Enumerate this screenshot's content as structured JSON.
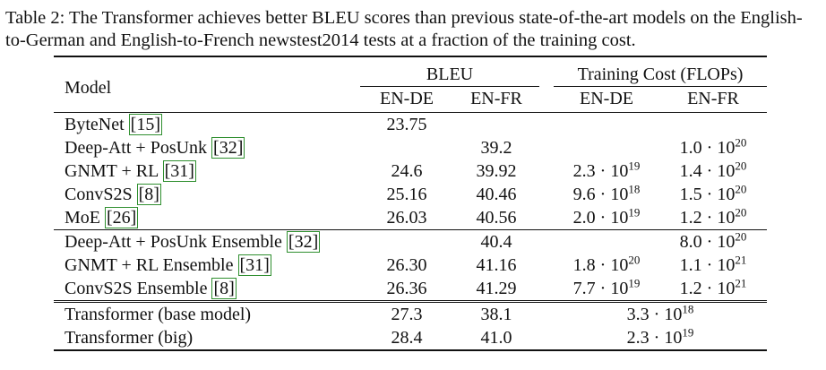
{
  "caption": "Table 2: The Transformer achieves better BLEU scores than previous state-of-the-art models on the English-to-German and English-to-French newstest2014 tests at a fraction of the training cost.",
  "header": {
    "model": "Model",
    "bleu": "BLEU",
    "cost": "Training Cost (FLOPs)",
    "sub_ende": "EN-DE",
    "sub_enfr": "EN-FR",
    "cost_ende": "EN-DE",
    "cost_enfr": "EN-FR"
  },
  "groups": [
    [
      {
        "name": "ByteNet ",
        "ref": "[15]",
        "bleu_ende": "23.75",
        "bleu_enfr": "",
        "cost_ende": "",
        "cost_enfr": ""
      },
      {
        "name": "Deep-Att + PosUnk ",
        "ref": "[32]",
        "bleu_ende": "",
        "bleu_enfr": "39.2",
        "cost_ende": "",
        "cost_enfr": "1.0 · 10^20"
      },
      {
        "name": "GNMT + RL ",
        "ref": "[31]",
        "bleu_ende": "24.6",
        "bleu_enfr": "39.92",
        "cost_ende": "2.3 · 10^19",
        "cost_enfr": "1.4 · 10^20"
      },
      {
        "name": "ConvS2S ",
        "ref": "[8]",
        "bleu_ende": "25.16",
        "bleu_enfr": "40.46",
        "cost_ende": "9.6 · 10^18",
        "cost_enfr": "1.5 · 10^20"
      },
      {
        "name": "MoE ",
        "ref": "[26]",
        "bleu_ende": "26.03",
        "bleu_enfr": "40.56",
        "cost_ende": "2.0 · 10^19",
        "cost_enfr": "1.2 · 10^20"
      }
    ],
    [
      {
        "name": "Deep-Att + PosUnk Ensemble ",
        "ref": "[32]",
        "bleu_ende": "",
        "bleu_enfr": "40.4",
        "cost_ende": "",
        "cost_enfr": "8.0 · 10^20"
      },
      {
        "name": "GNMT + RL Ensemble ",
        "ref": "[31]",
        "bleu_ende": "26.30",
        "bleu_enfr": "41.16",
        "cost_ende": "1.8 · 10^20",
        "cost_enfr": "1.1 · 10^21"
      },
      {
        "name": "ConvS2S Ensemble ",
        "ref": "[8]",
        "bleu_ende": "26.36",
        "bleu_enfr": "41.29",
        "bold_enfr": true,
        "cost_ende": "7.7 · 10^19",
        "cost_enfr": "1.2 · 10^21"
      }
    ]
  ],
  "transformer": [
    {
      "name": "Transformer (base model)",
      "bleu_ende": "27.3",
      "bleu_enfr": "38.1",
      "cost": "3.3 · 10^18",
      "bold_cost": true
    },
    {
      "name": "Transformer (big)",
      "bleu_ende": "28.4",
      "bleu_enfr": "41.0",
      "bold_bleu": true,
      "cost": "2.3 · 10^19",
      "bold_cost": false
    }
  ]
}
